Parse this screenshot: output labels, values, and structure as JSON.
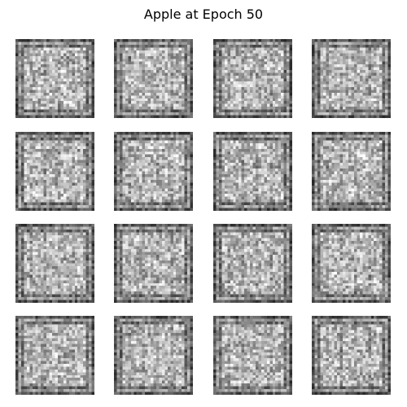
{
  "figure": {
    "title": "Apple at Epoch 50"
  },
  "samples": {
    "rows": 4,
    "cols": 4,
    "style": "grayscale noisy GAN samples with dark square border and lighter noisy interior",
    "palette": {
      "dark": "#1e1e1e",
      "mid": "#8a8a8a",
      "light": "#f2f2f2",
      "background": "#ffffff"
    }
  }
}
